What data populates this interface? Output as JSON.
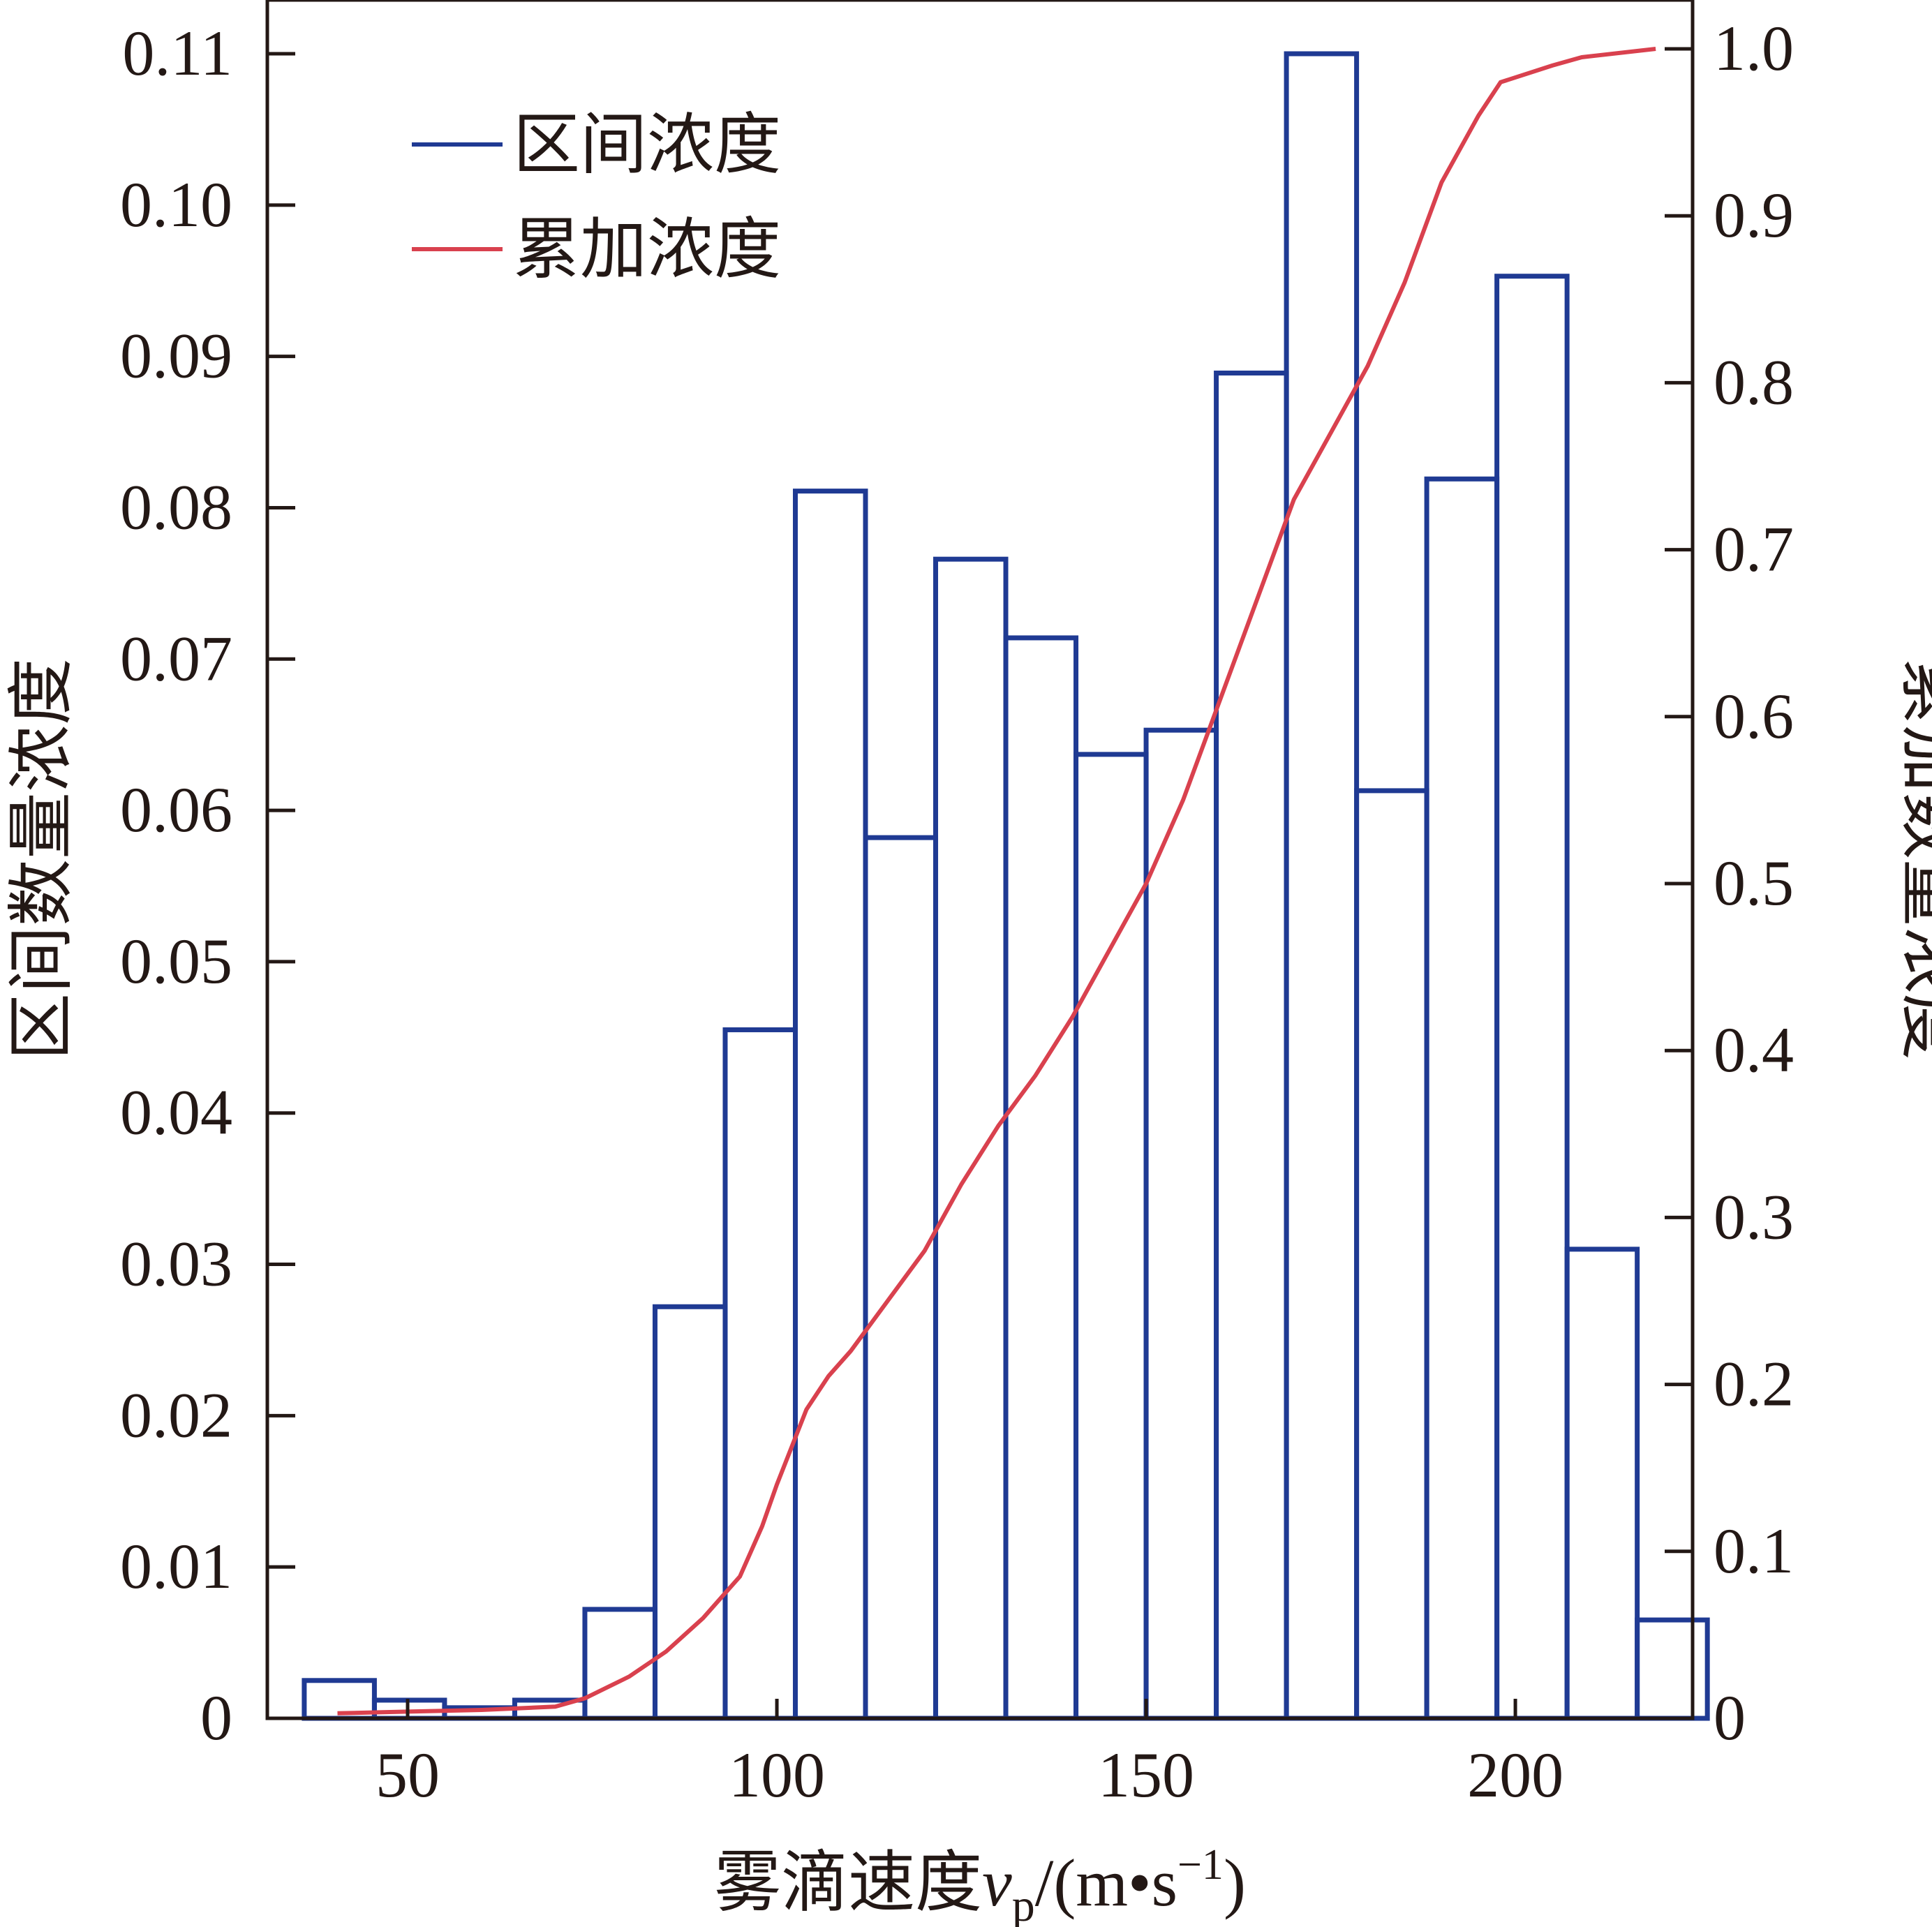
{
  "chart_data": {
    "type": "bar",
    "xlabel": "雾滴速度",
    "xlabel_var": "v",
    "xlabel_sub": "p",
    "xlabel_unit": "/(m•s",
    "xlabel_sup": "−1",
    "xlabel_close": ")",
    "ylabel_left": "区间数量浓度",
    "ylabel_right": "累加数量浓度",
    "xlim": [
      31,
      224
    ],
    "ylim_left": [
      0,
      0.11
    ],
    "ylim_right": [
      0,
      1.0
    ],
    "xticks": [
      50,
      100,
      150,
      200
    ],
    "yticks_left": [
      "0",
      "0.01",
      "0.02",
      "0.03",
      "0.04",
      "0.05",
      "0.06",
      "0.07",
      "0.08",
      "0.09",
      "0.10",
      "0.11"
    ],
    "yticks_right": [
      "0",
      "0.1",
      "0.2",
      "0.3",
      "0.4",
      "0.5",
      "0.6",
      "0.7",
      "0.8",
      "0.9",
      "1.0"
    ],
    "bin_width": 9.5,
    "legend": {
      "position": "top-left"
    },
    "series": [
      {
        "name": "区间浓度",
        "type": "histogram",
        "color": "#1f3a93",
        "bin_starts": [
          36,
          45.5,
          55,
          64.5,
          74,
          83.5,
          93,
          102.5,
          112,
          121.5,
          131,
          140.5,
          150,
          159.5,
          169,
          178.5,
          188,
          197.5,
          207,
          216.5
        ],
        "values": [
          0.0025,
          0.0012,
          0.0007,
          0.0012,
          0.0072,
          0.0272,
          0.0455,
          0.0811,
          0.0582,
          0.0766,
          0.0714,
          0.0637,
          0.0653,
          0.0889,
          0.11,
          0.0613,
          0.0819,
          0.0953,
          0.031,
          0.0065
        ]
      },
      {
        "name": "累加浓度",
        "type": "line",
        "color": "#d9414e",
        "x": [
          40.5,
          50,
          60,
          70,
          74,
          80,
          85,
          90,
          95,
          98,
          100,
          104,
          107,
          110,
          115,
          120,
          125,
          130,
          135,
          140,
          145,
          150,
          155,
          160,
          165,
          170,
          175,
          180,
          185,
          190,
          195,
          198,
          205,
          209,
          219
        ],
        "y": [
          0.003,
          0.004,
          0.005,
          0.007,
          0.012,
          0.025,
          0.04,
          0.06,
          0.085,
          0.115,
          0.14,
          0.185,
          0.205,
          0.22,
          0.25,
          0.28,
          0.32,
          0.355,
          0.385,
          0.42,
          0.46,
          0.5,
          0.55,
          0.61,
          0.67,
          0.73,
          0.77,
          0.81,
          0.86,
          0.92,
          0.96,
          0.98,
          0.99,
          0.995,
          1.0
        ]
      }
    ]
  }
}
